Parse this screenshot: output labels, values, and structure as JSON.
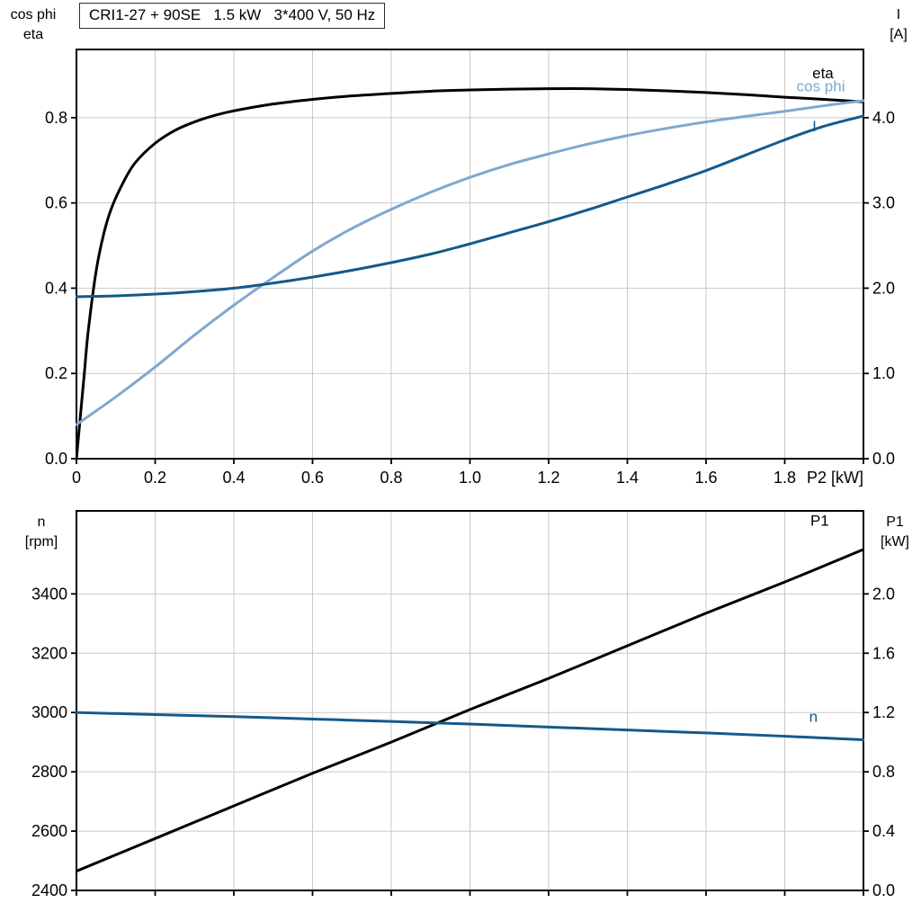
{
  "colors": {
    "black": "#000000",
    "dark_blue": "#15598a",
    "light_blue": "#7fa8cf",
    "grid": "#c9c9c9",
    "frame": "#000000"
  },
  "chart_data": [
    {
      "type": "line",
      "panel": "top",
      "title": "CRI1-27 + 90SE   1.5 kW   3*400 V, 50 Hz",
      "x_axis": {
        "range": [
          0,
          2.0
        ],
        "grid_step": 0.2,
        "tick_values": [
          0,
          0.2,
          0.4,
          0.6,
          0.8,
          1.0,
          1.2,
          1.4,
          1.6,
          1.8,
          2.0
        ],
        "tick_labels": [
          "0",
          "0.2",
          "0.4",
          "0.6",
          "0.8",
          "1.0",
          "1.2",
          "1.4",
          "1.6",
          "1.8",
          ""
        ],
        "end_label": "P2 [kW]"
      },
      "left_axis": {
        "title_lines": [
          "cos phi",
          "eta"
        ],
        "range": [
          0,
          0.96
        ],
        "tick_values": [
          0,
          0.2,
          0.4,
          0.6,
          0.8
        ],
        "tick_labels": [
          "0.0",
          "0.2",
          "0.4",
          "0.6",
          "0.8"
        ]
      },
      "right_axis": {
        "title_lines": [
          "I",
          "[A]"
        ],
        "range": [
          0,
          4.8
        ],
        "tick_values": [
          0,
          1.0,
          2.0,
          3.0,
          4.0
        ],
        "tick_labels": [
          "0.0",
          "1.0",
          "2.0",
          "3.0",
          "4.0"
        ]
      },
      "series": [
        {
          "name": "eta",
          "label": "eta",
          "axis": "left",
          "color_key": "black",
          "label_at": {
            "x": 1.87,
            "y": 0.893
          },
          "points": [
            [
              0,
              0
            ],
            [
              0.01,
              0.1
            ],
            [
              0.02,
              0.2
            ],
            [
              0.03,
              0.3
            ],
            [
              0.05,
              0.44
            ],
            [
              0.07,
              0.53
            ],
            [
              0.09,
              0.59
            ],
            [
              0.12,
              0.65
            ],
            [
              0.15,
              0.695
            ],
            [
              0.2,
              0.74
            ],
            [
              0.25,
              0.77
            ],
            [
              0.3,
              0.79
            ],
            [
              0.35,
              0.805
            ],
            [
              0.4,
              0.816
            ],
            [
              0.5,
              0.832
            ],
            [
              0.6,
              0.843
            ],
            [
              0.7,
              0.851
            ],
            [
              0.8,
              0.857
            ],
            [
              0.9,
              0.862
            ],
            [
              1.0,
              0.865
            ],
            [
              1.1,
              0.867
            ],
            [
              1.2,
              0.868
            ],
            [
              1.3,
              0.868
            ],
            [
              1.4,
              0.866
            ],
            [
              1.5,
              0.863
            ],
            [
              1.6,
              0.859
            ],
            [
              1.7,
              0.854
            ],
            [
              1.8,
              0.848
            ],
            [
              1.9,
              0.843
            ],
            [
              2.0,
              0.837
            ]
          ]
        },
        {
          "name": "cos-phi",
          "label": "cos phi",
          "axis": "left",
          "color_key": "light_blue",
          "label_at": {
            "x": 1.83,
            "y": 0.862
          },
          "points": [
            [
              0,
              0.08
            ],
            [
              0.1,
              0.145
            ],
            [
              0.2,
              0.215
            ],
            [
              0.3,
              0.29
            ],
            [
              0.4,
              0.36
            ],
            [
              0.5,
              0.425
            ],
            [
              0.6,
              0.487
            ],
            [
              0.7,
              0.54
            ],
            [
              0.8,
              0.585
            ],
            [
              0.9,
              0.625
            ],
            [
              1.0,
              0.66
            ],
            [
              1.1,
              0.69
            ],
            [
              1.2,
              0.715
            ],
            [
              1.3,
              0.738
            ],
            [
              1.4,
              0.758
            ],
            [
              1.5,
              0.775
            ],
            [
              1.6,
              0.79
            ],
            [
              1.7,
              0.803
            ],
            [
              1.8,
              0.815
            ],
            [
              1.9,
              0.828
            ],
            [
              2.0,
              0.84
            ]
          ]
        },
        {
          "name": "current",
          "label": "I",
          "axis": "right",
          "color_key": "dark_blue",
          "label_at": {
            "x": 1.87,
            "y": 3.84
          },
          "points": [
            [
              0,
              1.9
            ],
            [
              0.1,
              1.91
            ],
            [
              0.2,
              1.93
            ],
            [
              0.3,
              1.96
            ],
            [
              0.4,
              2.0
            ],
            [
              0.5,
              2.06
            ],
            [
              0.6,
              2.13
            ],
            [
              0.7,
              2.21
            ],
            [
              0.8,
              2.3
            ],
            [
              0.9,
              2.4
            ],
            [
              1.0,
              2.52
            ],
            [
              1.1,
              2.65
            ],
            [
              1.2,
              2.78
            ],
            [
              1.3,
              2.92
            ],
            [
              1.4,
              3.07
            ],
            [
              1.5,
              3.22
            ],
            [
              1.6,
              3.38
            ],
            [
              1.7,
              3.56
            ],
            [
              1.8,
              3.74
            ],
            [
              1.9,
              3.9
            ],
            [
              2.0,
              4.02
            ]
          ]
        }
      ]
    },
    {
      "type": "line",
      "panel": "bottom",
      "x_axis": {
        "range": [
          0,
          2.0
        ],
        "grid_step": 0.2,
        "tick_values": [
          0,
          0.2,
          0.4,
          0.6,
          0.8,
          1.0,
          1.2,
          1.4,
          1.6,
          1.8,
          2.0
        ],
        "tick_labels": [],
        "end_label": ""
      },
      "left_axis": {
        "title_lines": [
          "n",
          "[rpm]"
        ],
        "range": [
          2400,
          3680
        ],
        "tick_values": [
          2400,
          2600,
          2800,
          3000,
          3200,
          3400
        ],
        "tick_labels": [
          "2400",
          "2600",
          "2800",
          "3000",
          "3200",
          "3400"
        ]
      },
      "right_axis": {
        "title_lines": [
          "P1",
          "[kW]"
        ],
        "range": [
          0,
          2.56
        ],
        "tick_values": [
          0,
          0.4,
          0.8,
          1.2,
          1.6,
          2.0
        ],
        "tick_labels": [
          "0.0",
          "0.4",
          "0.8",
          "1.2",
          "1.6",
          "2.0"
        ]
      },
      "series": [
        {
          "name": "p1",
          "label": "P1",
          "axis": "right",
          "color_key": "black",
          "label_at": {
            "x": 1.865,
            "y": 2.46
          },
          "points": [
            [
              0,
              0.13
            ],
            [
              0.2,
              0.35
            ],
            [
              0.4,
              0.57
            ],
            [
              0.6,
              0.79
            ],
            [
              0.8,
              1.0
            ],
            [
              1.0,
              1.22
            ],
            [
              1.2,
              1.43
            ],
            [
              1.4,
              1.65
            ],
            [
              1.6,
              1.87
            ],
            [
              1.8,
              2.08
            ],
            [
              2.0,
              2.3
            ]
          ]
        },
        {
          "name": "speed",
          "label": "n",
          "axis": "left",
          "color_key": "dark_blue",
          "label_at": {
            "x": 1.862,
            "y": 2968
          },
          "points": [
            [
              0,
              3000
            ],
            [
              0.2,
              2993
            ],
            [
              0.4,
              2986
            ],
            [
              0.6,
              2978
            ],
            [
              0.8,
              2970
            ],
            [
              1.0,
              2961
            ],
            [
              1.2,
              2951
            ],
            [
              1.4,
              2941
            ],
            [
              1.6,
              2931
            ],
            [
              1.8,
              2920
            ],
            [
              2.0,
              2908
            ]
          ]
        }
      ]
    }
  ]
}
